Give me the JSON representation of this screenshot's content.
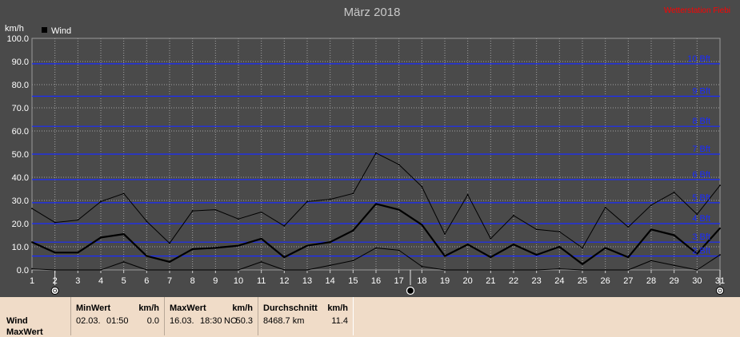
{
  "chart_data": {
    "type": "line",
    "title": "März 2018",
    "source": "Wetterstation Fiebi",
    "ylabel": "km/h",
    "legend": [
      {
        "name": "Wind",
        "color": "#000000"
      }
    ],
    "legend_position": "top-left",
    "ylim": [
      0,
      100
    ],
    "yticks": [
      "0.0",
      "10.0",
      "20.0",
      "30.0",
      "40.0",
      "50.0",
      "60.0",
      "70.0",
      "80.0",
      "90.0",
      "100.0"
    ],
    "grid": true,
    "categories": [
      "1",
      "2",
      "3",
      "4",
      "5",
      "6",
      "7",
      "8",
      "9",
      "10",
      "11",
      "12",
      "13",
      "14",
      "15",
      "16",
      "17",
      "18",
      "19",
      "20",
      "21",
      "22",
      "23",
      "24",
      "25",
      "26",
      "27",
      "28",
      "29",
      "30",
      "31"
    ],
    "series": [
      {
        "role": "max",
        "values": [
          26.5,
          20.5,
          21.5,
          29.5,
          33.0,
          21.0,
          11.5,
          25.5,
          26.0,
          22.0,
          25.0,
          19.0,
          29.5,
          30.5,
          33.0,
          50.5,
          45.5,
          36.0,
          15.5,
          32.5,
          13.5,
          23.5,
          17.5,
          16.5,
          9.5,
          27.0,
          18.5,
          28.0,
          33.5,
          24.0,
          36.5
        ]
      },
      {
        "role": "avg",
        "name": "Wind",
        "values": [
          12.0,
          7.5,
          7.5,
          14.0,
          15.5,
          6.0,
          3.5,
          9.0,
          9.5,
          10.5,
          13.5,
          5.5,
          10.5,
          12.0,
          17.0,
          28.5,
          26.0,
          19.5,
          6.0,
          11.0,
          5.5,
          11.0,
          6.5,
          10.0,
          2.5,
          9.5,
          5.5,
          17.5,
          15.0,
          7.0,
          18.0
        ]
      },
      {
        "role": "min",
        "values": [
          0.5,
          0.0,
          0.0,
          0.0,
          3.5,
          0.0,
          0.0,
          0.0,
          0.0,
          0.0,
          3.5,
          0.0,
          0.0,
          2.0,
          4.0,
          9.5,
          8.5,
          1.5,
          0.0,
          0.0,
          0.0,
          0.0,
          0.0,
          0.5,
          0.0,
          0.0,
          0.0,
          4.0,
          2.0,
          0.0,
          6.5
        ]
      }
    ],
    "beaufort": [
      {
        "label": "2 Bft",
        "value": 6
      },
      {
        "label": "3 Bft",
        "value": 12
      },
      {
        "label": "4 Bft",
        "value": 20
      },
      {
        "label": "5 Bft",
        "value": 29
      },
      {
        "label": "6 Bft",
        "value": 39
      },
      {
        "label": "7 Bft",
        "value": 50
      },
      {
        "label": "8 Bft",
        "value": 62
      },
      {
        "label": "9 Bft",
        "value": 75
      },
      {
        "label": "10 Bft",
        "value": 89
      }
    ],
    "moon_phases": [
      {
        "day": 2,
        "phase": "full"
      },
      {
        "day": 17.5,
        "phase": "new"
      },
      {
        "day": 31,
        "phase": "full"
      }
    ]
  },
  "stats": {
    "row_labels": [
      "Wind",
      "MaxWert"
    ],
    "min": {
      "label": "MinWert",
      "unit": "km/h",
      "date": "02.03.",
      "time": "01:50",
      "value": "0.0"
    },
    "max": {
      "label": "MaxWert",
      "unit": "km/h",
      "date": "16.03.",
      "time": "18:30",
      "dir": "NO",
      "value": "50.3"
    },
    "avg": {
      "label": "Durchschnitt",
      "unit": "km/h",
      "distance": "8468.7 km",
      "value": "11.4"
    }
  }
}
